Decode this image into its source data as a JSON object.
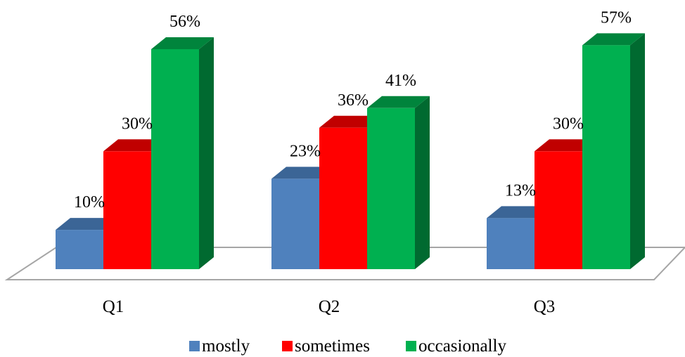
{
  "chart_data": {
    "type": "bar",
    "style": "3d-clustered-column",
    "categories": [
      "Q1",
      "Q2",
      "Q3"
    ],
    "series": [
      {
        "name": "mostly",
        "values": [
          10,
          23,
          13
        ],
        "color": "#4f81bd",
        "color_top": "#3b6596",
        "color_side": "#2f5280"
      },
      {
        "name": "sometimes",
        "values": [
          30,
          36,
          30
        ],
        "color": "#ff0000",
        "color_top": "#c00000",
        "color_side": "#a00000"
      },
      {
        "name": "occasionally",
        "values": [
          56,
          41,
          57
        ],
        "color": "#00b050",
        "color_top": "#00843c",
        "color_side": "#006a30"
      }
    ],
    "data_labels": [
      [
        "10%",
        "23%",
        "13%"
      ],
      [
        "30%",
        "36%",
        "30%"
      ],
      [
        "56%",
        "41%",
        "57%"
      ]
    ],
    "value_unit": "%",
    "ylim": [
      0,
      60
    ],
    "title": "",
    "xlabel": "",
    "ylabel": "",
    "grid": false,
    "legend_position": "bottom",
    "floor_color": "#a6a6a6"
  }
}
